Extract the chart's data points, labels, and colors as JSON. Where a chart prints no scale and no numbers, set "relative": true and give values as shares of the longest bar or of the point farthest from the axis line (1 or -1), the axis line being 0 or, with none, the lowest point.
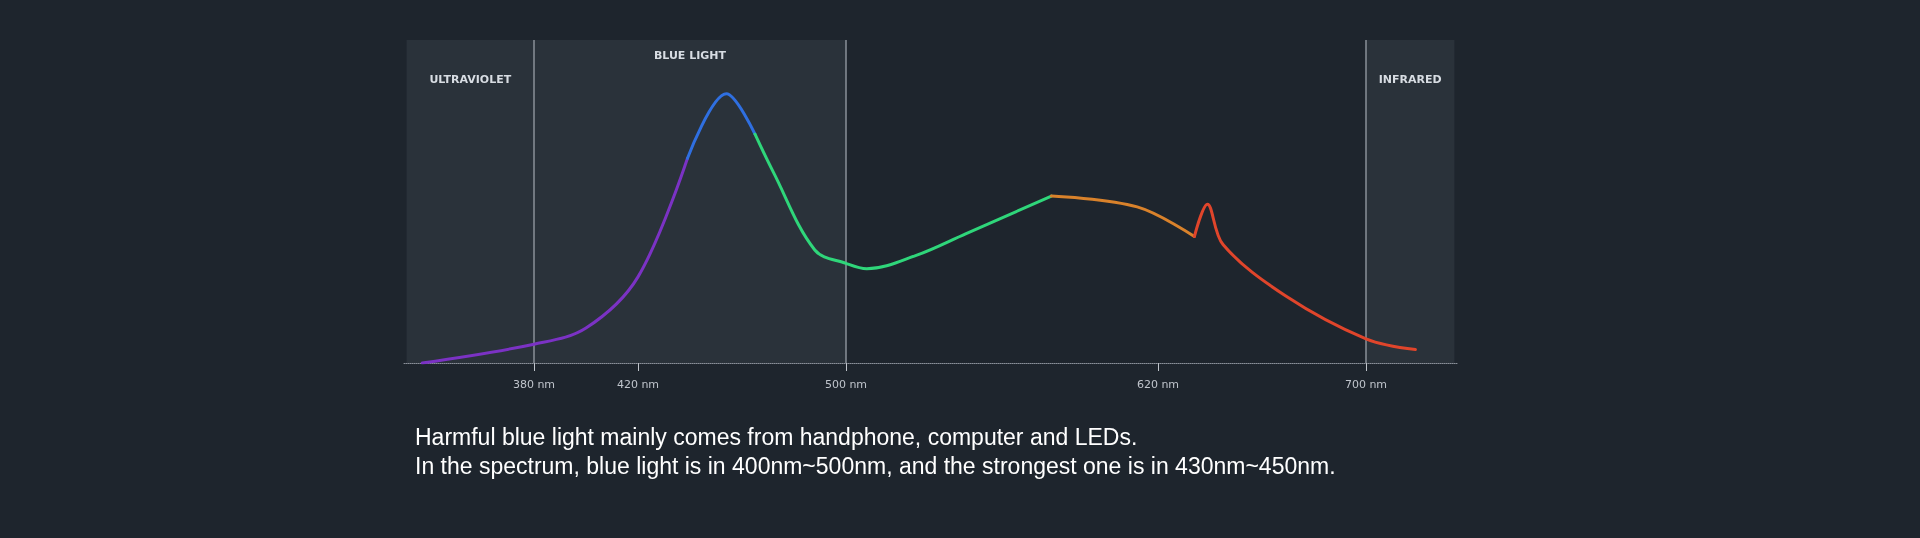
{
  "chart_data": {
    "type": "line",
    "relative": true,
    "xlim": [
      330,
      735
    ],
    "xticks": [
      {
        "value": 380,
        "label": "380 nm"
      },
      {
        "value": 420,
        "label": "420 nm"
      },
      {
        "value": 500,
        "label": "500 nm"
      },
      {
        "value": 620,
        "label": "620 nm"
      },
      {
        "value": 700,
        "label": "700 nm"
      }
    ],
    "series": [
      {
        "color": "#7b32c4",
        "x": [
          337,
          380,
          400,
          420,
          439
        ],
        "values": [
          0,
          0.07,
          0.13,
          0.32,
          0.76
        ]
      },
      {
        "color": "#2f6fe0",
        "x": [
          439,
          454,
          465
        ],
        "values": [
          0.76,
          1.0,
          0.85
        ]
      },
      {
        "color": "#2fd67a",
        "x": [
          465,
          472,
          488,
          500,
          508,
          527,
          546,
          579
        ],
        "values": [
          0.85,
          0.71,
          0.42,
          0.37,
          0.35,
          0.4,
          0.48,
          0.62
        ]
      },
      {
        "color": "#d9822b",
        "x": [
          579,
          612,
          634
        ],
        "values": [
          0.62,
          0.58,
          0.47
        ]
      },
      {
        "color": "#e0452b",
        "x": [
          634,
          639,
          645,
          669,
          700,
          719
        ],
        "values": [
          0.47,
          0.59,
          0.44,
          0.25,
          0.09,
          0.05
        ]
      }
    ],
    "marker": "none",
    "ref_lines": [
      {
        "axis": "x",
        "value": 380,
        "color": "#8a9099"
      },
      {
        "axis": "x",
        "value": 500,
        "color": "#8a9099"
      },
      {
        "axis": "x",
        "value": 700,
        "color": "#8a9099"
      }
    ],
    "bands": [
      {
        "axis": "x",
        "from": 331,
        "to": 380,
        "label": "ULTRAVIOLET"
      },
      {
        "axis": "x",
        "from": 380,
        "to": 500,
        "label": "BLUE LIGHT"
      },
      {
        "axis": "x",
        "from": 700,
        "to": 734,
        "label": "INFRARED"
      }
    ],
    "annotations": [
      "Harmful blue light mainly comes from handphone, computer and LEDs.",
      "In the spectrum, blue light is in 400nm~500nm, and the strongest one is in 430nm~450nm."
    ]
  }
}
